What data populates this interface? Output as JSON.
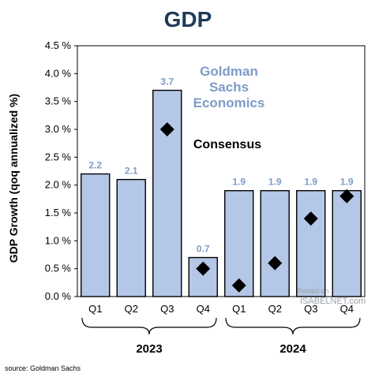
{
  "chart_data": {
    "type": "bar",
    "title": "GDP",
    "ylabel": "GDP Growth (qoq annualized %)",
    "ylim": [
      0,
      4.5
    ],
    "yticks": [
      "0.0 %",
      "0.5 %",
      "1.0 %",
      "1.5 %",
      "2.0 %",
      "2.5 %",
      "3.0 %",
      "3.5 %",
      "4.0 %",
      "4.5 %"
    ],
    "categories": [
      "Q1",
      "Q2",
      "Q3",
      "Q4",
      "Q1",
      "Q2",
      "Q3",
      "Q4"
    ],
    "groups": [
      {
        "label": "2023",
        "count": 4
      },
      {
        "label": "2024",
        "count": 4
      }
    ],
    "series": [
      {
        "name": "Goldman Sachs Economics",
        "type": "bar",
        "color": "#b4c7e7",
        "values": [
          2.2,
          2.1,
          3.7,
          0.7,
          1.9,
          1.9,
          1.9,
          1.9
        ]
      },
      {
        "name": "Consensus",
        "type": "marker",
        "color": "#000000",
        "values": [
          null,
          null,
          3.0,
          0.5,
          0.2,
          0.6,
          1.4,
          1.8
        ]
      }
    ],
    "data_labels": [
      "2.2",
      "2.1",
      "3.7",
      "0.7",
      "1.9",
      "1.9",
      "1.9",
      "1.9"
    ],
    "legend": {
      "gs_lines": [
        "Goldman",
        "Sachs",
        "Economics"
      ],
      "consensus": "Consensus",
      "placement": "inside top-right"
    },
    "grid": false
  },
  "source": "source: Goldman Sachs",
  "watermark": {
    "line1": "Posted on",
    "line2": "ISABELNET.com"
  }
}
